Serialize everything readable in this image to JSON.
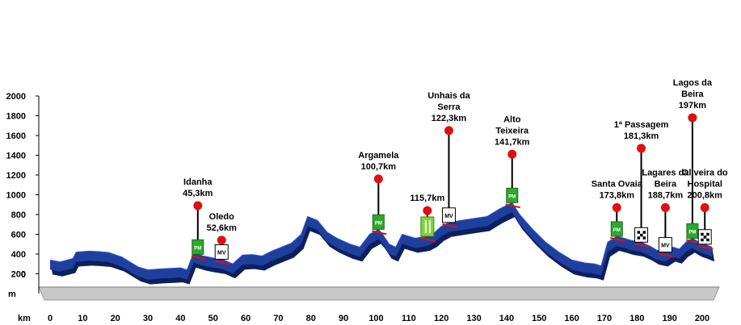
{
  "chart_data": {
    "type": "area",
    "ylabel": "m",
    "xlabel": "km",
    "ylim": [
      0,
      2000
    ],
    "xlim": [
      0,
      205
    ],
    "y_ticks": [
      0,
      200,
      400,
      600,
      800,
      1000,
      1200,
      1400,
      1600,
      1800,
      2000
    ],
    "x_ticks": [
      0,
      10,
      20,
      30,
      40,
      50,
      60,
      70,
      80,
      90,
      100,
      110,
      120,
      130,
      140,
      150,
      160,
      170,
      180,
      190,
      200
    ],
    "grid": false,
    "colors": {
      "profile": "#1f3f9e",
      "profile_dark": "#0d1f5c",
      "base": "#c8c8c8",
      "marker": "#e01010"
    },
    "profile": [
      [
        0,
        340
      ],
      [
        3,
        320
      ],
      [
        7,
        355
      ],
      [
        8,
        420
      ],
      [
        12,
        430
      ],
      [
        15,
        425
      ],
      [
        18,
        415
      ],
      [
        22,
        370
      ],
      [
        27,
        270
      ],
      [
        30,
        240
      ],
      [
        34,
        250
      ],
      [
        40,
        260
      ],
      [
        42,
        240
      ],
      [
        44,
        410
      ],
      [
        47,
        380
      ],
      [
        50,
        360
      ],
      [
        53,
        345
      ],
      [
        56,
        300
      ],
      [
        59,
        390
      ],
      [
        62,
        395
      ],
      [
        65,
        380
      ],
      [
        68,
        430
      ],
      [
        71,
        470
      ],
      [
        74,
        510
      ],
      [
        77,
        600
      ],
      [
        79,
        780
      ],
      [
        82,
        740
      ],
      [
        85,
        620
      ],
      [
        88,
        560
      ],
      [
        92,
        500
      ],
      [
        95,
        470
      ],
      [
        98,
        600
      ],
      [
        100.7,
        650
      ],
      [
        102,
        600
      ],
      [
        104,
        500
      ],
      [
        106,
        470
      ],
      [
        108,
        600
      ],
      [
        110,
        580
      ],
      [
        112,
        560
      ],
      [
        115.7,
        580
      ],
      [
        118,
        620
      ],
      [
        120,
        680
      ],
      [
        122.3,
        720
      ],
      [
        126,
        740
      ],
      [
        130,
        760
      ],
      [
        134,
        780
      ],
      [
        138,
        860
      ],
      [
        141.7,
        920
      ],
      [
        144,
        800
      ],
      [
        148,
        650
      ],
      [
        152,
        520
      ],
      [
        156,
        420
      ],
      [
        160,
        340
      ],
      [
        164,
        310
      ],
      [
        167,
        300
      ],
      [
        169,
        280
      ],
      [
        171,
        520
      ],
      [
        173.8,
        580
      ],
      [
        176,
        560
      ],
      [
        178,
        540
      ],
      [
        181.3,
        520
      ],
      [
        184,
        480
      ],
      [
        186,
        440
      ],
      [
        188.7,
        420
      ],
      [
        191,
        470
      ],
      [
        193,
        450
      ],
      [
        195,
        520
      ],
      [
        197,
        560
      ],
      [
        199,
        520
      ],
      [
        200.8,
        500
      ],
      [
        203,
        470
      ]
    ],
    "pois": [
      {
        "name": "Idanha",
        "dist": "45,3km",
        "km": 45.3,
        "label_alt": 1050,
        "sign": "PM4"
      },
      {
        "name": "Oledo",
        "dist": "52,6km",
        "km": 52.6,
        "label_alt": 700,
        "sign": "MV"
      },
      {
        "name": "Argamela",
        "dist": "100,7km",
        "km": 100.7,
        "label_alt": 1320,
        "sign": "PM4"
      },
      {
        "name": "",
        "dist": "115,7km",
        "km": 115.7,
        "label_alt": 1000,
        "sign": "FOOD"
      },
      {
        "name": "Unhais da Serra",
        "dist": "122,3km",
        "km": 122.3,
        "label_alt": 1810,
        "sign": "MV"
      },
      {
        "name": "Alto Teixeira",
        "dist": "141,7km",
        "km": 141.7,
        "label_alt": 1570,
        "sign": "PM2"
      },
      {
        "name": "Santa Ovaia",
        "dist": "173,8km",
        "km": 173.8,
        "label_alt": 1030,
        "sign": "PM3"
      },
      {
        "name": "1ª Passagem",
        "dist": "181,3km",
        "km": 181.3,
        "label_alt": 1630,
        "sign": "FLAG"
      },
      {
        "name": "Lagares da Beira",
        "dist": "188,7km",
        "km": 188.7,
        "label_alt": 1030,
        "sign": "MV"
      },
      {
        "name": "Lagos da Beira",
        "dist": "197km",
        "km": 197,
        "label_alt": 1940,
        "sign": "PM4"
      },
      {
        "name": "Oliveira do Hospital",
        "dist": "200,8km",
        "km": 200.8,
        "label_alt": 1030,
        "sign": "FLAG"
      }
    ]
  }
}
